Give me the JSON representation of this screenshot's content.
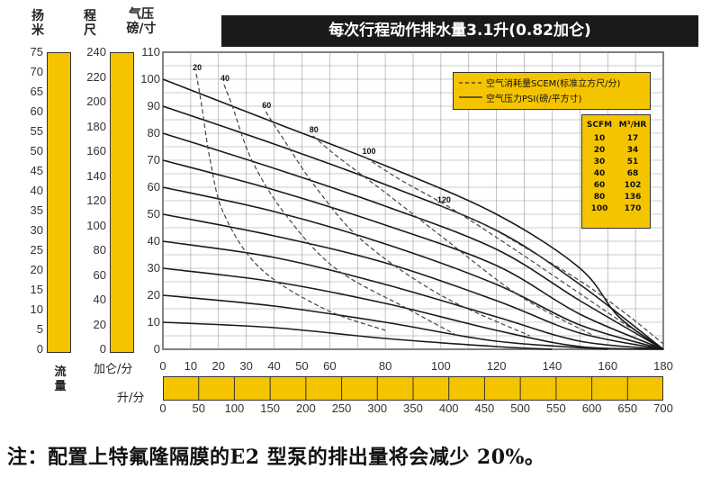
{
  "chart_data": {
    "type": "line",
    "title": "每次行程动作排水量3.1升(0.82加仑)",
    "note": "注：配置上特氟隆隔膜的E2 型泵的排出量将会减少 20%。",
    "axes": {
      "head_m": {
        "label": "扬\n米",
        "ticks": [
          "75",
          "70",
          "65",
          "60",
          "55",
          "50",
          "45",
          "40",
          "35",
          "30",
          "25",
          "20",
          "15",
          "10",
          "5",
          "0"
        ],
        "range": [
          0,
          75
        ],
        "footer": "流\n量"
      },
      "head_ft": {
        "label": "程\n尺",
        "ticks": [
          "240",
          "220",
          "200",
          "180",
          "160",
          "140",
          "120",
          "100",
          "80",
          "60",
          "40",
          "20",
          "0"
        ],
        "range": [
          0,
          240
        ]
      },
      "air_psi": {
        "label": "气压\n磅/寸",
        "ticks": [
          "110",
          "100",
          "90",
          "80",
          "70",
          "60",
          "50",
          "40",
          "30",
          "20",
          "10",
          "0"
        ],
        "range": [
          0,
          110
        ]
      },
      "flow_gpm": {
        "label": "加仑/分",
        "ticks": [
          "0",
          "10",
          "20",
          "30",
          "40",
          "50",
          "60",
          "80",
          "100",
          "120",
          "140",
          "160",
          "180"
        ],
        "range": [
          0,
          180
        ]
      },
      "flow_lpm": {
        "label": "升/分",
        "ticks": [
          "0",
          "50",
          "100",
          "150",
          "200",
          "250",
          "300",
          "350",
          "400",
          "450",
          "500",
          "550",
          "600",
          "650",
          "700"
        ],
        "range": [
          0,
          700
        ]
      }
    },
    "legend": {
      "scfm": "空气消耗量SCEM(标准立方尺/分)",
      "psi": "空气压力PSI(磅/平方寸)",
      "position": "top-right"
    },
    "conversion_table": {
      "headers": [
        "SCFM",
        "M³/HR"
      ],
      "rows": [
        [
          "10",
          "17"
        ],
        [
          "20",
          "34"
        ],
        [
          "30",
          "51"
        ],
        [
          "40",
          "68"
        ],
        [
          "60",
          "102"
        ],
        [
          "80",
          "136"
        ],
        [
          "100",
          "170"
        ]
      ]
    },
    "pressure_curves": [
      {
        "psi": 100,
        "points": [
          [
            0,
            100
          ],
          [
            40,
            84
          ],
          [
            80,
            68
          ],
          [
            120,
            50
          ],
          [
            150,
            30
          ],
          [
            164,
            12
          ],
          [
            180,
            0
          ]
        ]
      },
      {
        "psi": 90,
        "points": [
          [
            0,
            90
          ],
          [
            40,
            76
          ],
          [
            80,
            61
          ],
          [
            120,
            44
          ],
          [
            150,
            24
          ],
          [
            180,
            0
          ]
        ]
      },
      {
        "psi": 80,
        "points": [
          [
            0,
            80
          ],
          [
            40,
            67
          ],
          [
            80,
            53
          ],
          [
            120,
            37
          ],
          [
            150,
            18
          ],
          [
            180,
            0
          ]
        ]
      },
      {
        "psi": 70,
        "points": [
          [
            0,
            70
          ],
          [
            40,
            59
          ],
          [
            80,
            46
          ],
          [
            120,
            31
          ],
          [
            150,
            13
          ],
          [
            180,
            0
          ]
        ]
      },
      {
        "psi": 60,
        "points": [
          [
            0,
            60
          ],
          [
            40,
            51
          ],
          [
            80,
            39
          ],
          [
            120,
            24
          ],
          [
            150,
            9
          ],
          [
            180,
            0
          ]
        ]
      },
      {
        "psi": 50,
        "points": [
          [
            0,
            50
          ],
          [
            40,
            42
          ],
          [
            80,
            32
          ],
          [
            120,
            18
          ],
          [
            150,
            6
          ],
          [
            180,
            0
          ]
        ]
      },
      {
        "psi": 40,
        "points": [
          [
            0,
            40
          ],
          [
            40,
            34
          ],
          [
            80,
            24
          ],
          [
            120,
            12
          ],
          [
            150,
            3
          ],
          [
            180,
            0
          ]
        ]
      },
      {
        "psi": 30,
        "points": [
          [
            0,
            30
          ],
          [
            40,
            25
          ],
          [
            80,
            17
          ],
          [
            120,
            7
          ],
          [
            150,
            1
          ],
          [
            180,
            0
          ]
        ]
      },
      {
        "psi": 20,
        "points": [
          [
            0,
            20
          ],
          [
            40,
            16
          ],
          [
            80,
            10
          ],
          [
            120,
            3
          ],
          [
            160,
            0
          ]
        ]
      },
      {
        "psi": 10,
        "points": [
          [
            0,
            10
          ],
          [
            40,
            8
          ],
          [
            80,
            4
          ],
          [
            120,
            1
          ],
          [
            140,
            0
          ]
        ]
      }
    ],
    "air_consumption_curves": [
      {
        "scfm": 20,
        "points": [
          [
            12,
            102
          ],
          [
            14,
            90
          ],
          [
            17,
            70
          ],
          [
            22,
            50
          ],
          [
            35,
            30
          ],
          [
            58,
            15
          ],
          [
            80,
            7
          ]
        ]
      },
      {
        "scfm": 40,
        "points": [
          [
            22,
            98
          ],
          [
            25,
            90
          ],
          [
            32,
            70
          ],
          [
            44,
            50
          ],
          [
            62,
            30
          ],
          [
            88,
            15
          ],
          [
            106,
            5
          ]
        ]
      },
      {
        "scfm": 60,
        "points": [
          [
            37,
            88
          ],
          [
            42,
            80
          ],
          [
            55,
            60
          ],
          [
            72,
            40
          ],
          [
            100,
            20
          ],
          [
            132,
            5
          ]
        ]
      },
      {
        "scfm": 80,
        "points": [
          [
            54,
            79
          ],
          [
            62,
            72
          ],
          [
            80,
            58
          ],
          [
            100,
            42
          ],
          [
            128,
            20
          ],
          [
            155,
            5
          ]
        ]
      },
      {
        "scfm": 100,
        "points": [
          [
            73,
            71
          ],
          [
            85,
            63
          ],
          [
            104,
            52
          ],
          [
            125,
            38
          ],
          [
            148,
            22
          ],
          [
            168,
            8
          ]
        ]
      },
      {
        "scfm": 120,
        "points": [
          [
            100,
            53
          ],
          [
            116,
            46
          ],
          [
            133,
            36
          ],
          [
            152,
            24
          ],
          [
            168,
            12
          ],
          [
            180,
            2
          ]
        ]
      }
    ]
  }
}
